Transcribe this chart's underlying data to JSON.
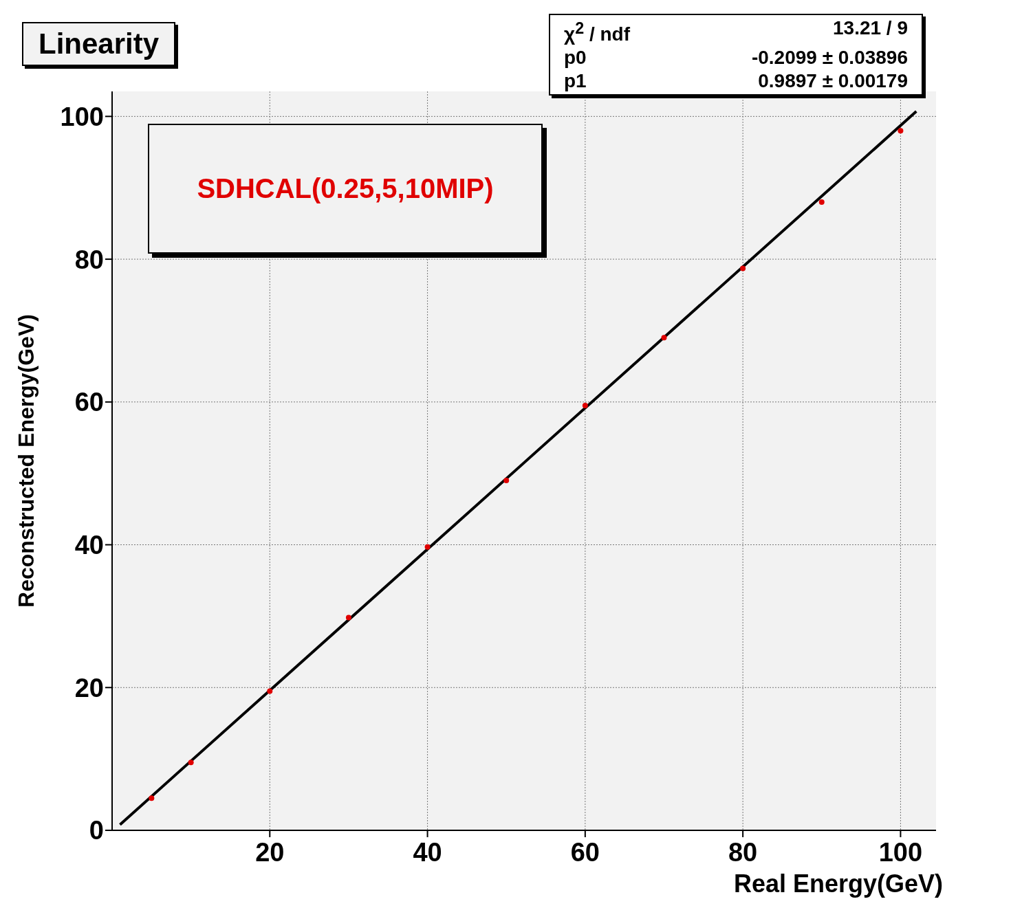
{
  "chart_data": {
    "type": "scatter",
    "title": "Linearity",
    "xlabel": "Real Energy(GeV)",
    "ylabel": "Reconstructed Energy(GeV)",
    "x": [
      5,
      10,
      20,
      30,
      40,
      50,
      60,
      70,
      80,
      90,
      100
    ],
    "series": [
      {
        "color": "#e00000",
        "values": [
          4.5,
          9.5,
          19.5,
          29.8,
          39.7,
          49,
          59.5,
          69,
          78.7,
          88,
          98
        ]
      },
      {
        "type": "line",
        "color": "#000000",
        "marker": "none",
        "x": [
          1,
          102
        ],
        "values": [
          0.8,
          100.7
        ]
      }
    ],
    "xlim": [
      0,
      104.5
    ],
    "ylim": [
      0,
      103.5
    ],
    "xticks": [
      20,
      40,
      60,
      80,
      100
    ],
    "yticks": [
      0,
      20,
      40,
      60,
      80,
      100
    ],
    "grid": true,
    "marker": "circle",
    "line_style": "solid",
    "annotations": [
      "χ$^{2}$ / ndf",
      "13.21 / 9",
      "p0",
      "-0.2099 ± 0.03896",
      "p1",
      "0.9897 ± 0.00179",
      "SDHCAL(0.25,5,10MIP)"
    ]
  }
}
